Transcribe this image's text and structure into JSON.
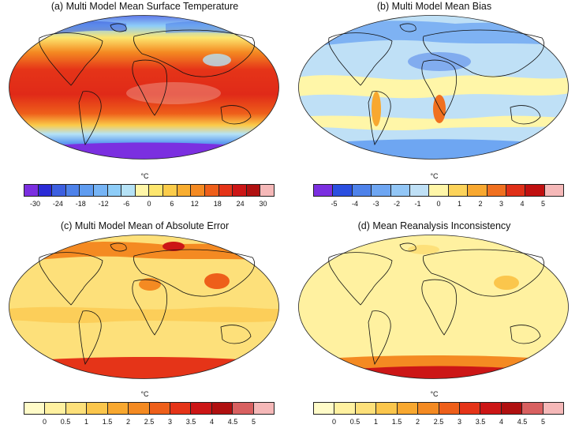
{
  "panels": [
    {
      "id": "a",
      "title": "(a) Multi Model Mean Surface Temperature",
      "unit": "°C",
      "colors": [
        "#7b2fe0",
        "#2b2bd6",
        "#3c5fe0",
        "#4e82ea",
        "#5f9cf0",
        "#76b4f5",
        "#8ecdf8",
        "#b5e2f6",
        "#fff6a8",
        "#fde66e",
        "#fbcc4a",
        "#f8ad30",
        "#f48a22",
        "#ee5f1a",
        "#e53418",
        "#cc1616",
        "#b01010",
        "#f5b8b8"
      ],
      "ticks": [
        {
          "label": "-30",
          "pos": 1
        },
        {
          "label": "-24",
          "pos": 3
        },
        {
          "label": "-18",
          "pos": 5
        },
        {
          "label": "-12",
          "pos": 7
        },
        {
          "label": "-6",
          "pos": 9
        },
        {
          "label": "0",
          "pos": 11
        },
        {
          "label": "6",
          "pos": 13
        },
        {
          "label": "12",
          "pos": 15
        },
        {
          "label": "18",
          "pos": 17
        },
        {
          "label": "24",
          "pos": 19
        },
        {
          "label": "30",
          "pos": 21
        }
      ],
      "tick_steps": 22
    },
    {
      "id": "b",
      "title": "(b) Multi Model Mean Bias",
      "unit": "°C",
      "colors": [
        "#7b2fe0",
        "#2b4fe0",
        "#4e82ea",
        "#6ea6f2",
        "#92c6f6",
        "#bfe0f6",
        "#fff6a8",
        "#fcd35a",
        "#f8a830",
        "#f07020",
        "#e03018",
        "#c01010",
        "#f5b8b8"
      ],
      "ticks": [
        {
          "label": "-5",
          "pos": 1
        },
        {
          "label": "-4",
          "pos": 2
        },
        {
          "label": "-3",
          "pos": 3
        },
        {
          "label": "-2",
          "pos": 4
        },
        {
          "label": "-1",
          "pos": 5
        },
        {
          "label": "0",
          "pos": 6
        },
        {
          "label": "1",
          "pos": 7
        },
        {
          "label": "2",
          "pos": 8
        },
        {
          "label": "3",
          "pos": 9
        },
        {
          "label": "4",
          "pos": 10
        },
        {
          "label": "5",
          "pos": 11
        }
      ],
      "tick_steps": 12
    },
    {
      "id": "c",
      "title": "(c) Multi Model Mean of Absolute Error",
      "unit": "°C",
      "colors": [
        "#fffbc8",
        "#fff1a0",
        "#fde07a",
        "#fbc64c",
        "#f8a830",
        "#f48a22",
        "#ee5f1a",
        "#e53418",
        "#cc1616",
        "#b01010",
        "#d86060",
        "#f5b8b8"
      ],
      "ticks": [
        {
          "label": "0",
          "pos": 1
        },
        {
          "label": "0.5",
          "pos": 2
        },
        {
          "label": "1",
          "pos": 3
        },
        {
          "label": "1.5",
          "pos": 4
        },
        {
          "label": "2",
          "pos": 5
        },
        {
          "label": "2.5",
          "pos": 6
        },
        {
          "label": "3",
          "pos": 7
        },
        {
          "label": "3.5",
          "pos": 8
        },
        {
          "label": "4",
          "pos": 9
        },
        {
          "label": "4.5",
          "pos": 10
        },
        {
          "label": "5",
          "pos": 11
        }
      ],
      "tick_steps": 12
    },
    {
      "id": "d",
      "title": "(d) Mean Reanalysis Inconsistency",
      "unit": "°C",
      "colors": [
        "#fffbc8",
        "#fff1a0",
        "#fde07a",
        "#fbc64c",
        "#f8a830",
        "#f48a22",
        "#ee5f1a",
        "#e53418",
        "#cc1616",
        "#b01010",
        "#d86060",
        "#f5b8b8"
      ],
      "ticks": [
        {
          "label": "0",
          "pos": 1
        },
        {
          "label": "0.5",
          "pos": 2
        },
        {
          "label": "1",
          "pos": 3
        },
        {
          "label": "1.5",
          "pos": 4
        },
        {
          "label": "2",
          "pos": 5
        },
        {
          "label": "2.5",
          "pos": 6
        },
        {
          "label": "3",
          "pos": 7
        },
        {
          "label": "3.5",
          "pos": 8
        },
        {
          "label": "4",
          "pos": 9
        },
        {
          "label": "4.5",
          "pos": 10
        },
        {
          "label": "5",
          "pos": 11
        }
      ],
      "tick_steps": 12
    }
  ]
}
